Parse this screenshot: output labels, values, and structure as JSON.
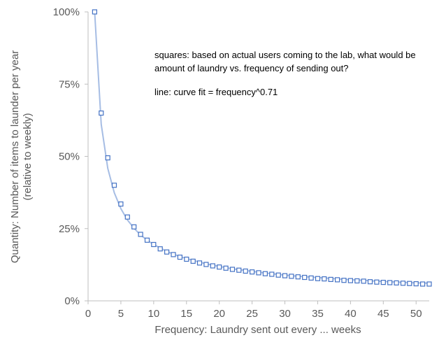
{
  "chart_data": {
    "type": "scatter",
    "title": "",
    "xlabel": "Frequency:  Laundry sent out every ... weeks",
    "ylabel_lines": [
      "Quantity:  Number of items to launder per year",
      "(relative to weekly)"
    ],
    "xlim": [
      0,
      52
    ],
    "ylim": [
      0,
      1
    ],
    "x_ticks": [
      0,
      5,
      10,
      15,
      20,
      25,
      30,
      35,
      40,
      45,
      50
    ],
    "y_ticks": [
      0,
      0.25,
      0.5,
      0.75,
      1.0
    ],
    "y_tick_labels": [
      "0%",
      "25%",
      "50%",
      "75%",
      "100%"
    ],
    "grid": false,
    "annotations": [
      "squares:  based on actual users coming to the lab, what would be",
      "amount of laundry vs. frequency of sending out?",
      "line: curve fit = frequency^0.71"
    ],
    "series": [
      {
        "marker": "square",
        "color": "#4472C4",
        "x": [
          1,
          2,
          3,
          4,
          5,
          6,
          7,
          8,
          9,
          10,
          11,
          12,
          13,
          14,
          15,
          16,
          17,
          18,
          19,
          20,
          21,
          22,
          23,
          24,
          25,
          26,
          27,
          28,
          29,
          30,
          31,
          32,
          33,
          34,
          35,
          36,
          37,
          38,
          39,
          40,
          41,
          42,
          43,
          44,
          45,
          46,
          47,
          48,
          49,
          50,
          51,
          52
        ],
        "y": [
          1.0,
          0.65,
          0.495,
          0.4,
          0.335,
          0.29,
          0.256,
          0.23,
          0.21,
          0.195,
          0.18,
          0.169,
          0.16,
          0.151,
          0.144,
          0.137,
          0.131,
          0.126,
          0.121,
          0.117,
          0.113,
          0.109,
          0.106,
          0.103,
          0.1,
          0.097,
          0.094,
          0.092,
          0.089,
          0.087,
          0.085,
          0.083,
          0.081,
          0.079,
          0.077,
          0.076,
          0.074,
          0.073,
          0.071,
          0.07,
          0.069,
          0.068,
          0.066,
          0.065,
          0.064,
          0.063,
          0.062,
          0.061,
          0.06,
          0.059,
          0.058,
          0.058
        ]
      },
      {
        "type": "line",
        "color": "#A6BDE4",
        "x": [
          1,
          2,
          3,
          4,
          5,
          6,
          7,
          8,
          9,
          10,
          12,
          14,
          16,
          18,
          20,
          22,
          24,
          26,
          28,
          30,
          32,
          34,
          36,
          38,
          40,
          42,
          44,
          46,
          48,
          50,
          52
        ],
        "y": [
          1.0,
          0.611,
          0.458,
          0.374,
          0.319,
          0.28,
          0.251,
          0.228,
          0.21,
          0.195,
          0.171,
          0.153,
          0.14,
          0.128,
          0.119,
          0.111,
          0.105,
          0.099,
          0.094,
          0.089,
          0.085,
          0.082,
          0.079,
          0.076,
          0.073,
          0.071,
          0.068,
          0.066,
          0.064,
          0.062,
          0.061
        ]
      }
    ]
  }
}
